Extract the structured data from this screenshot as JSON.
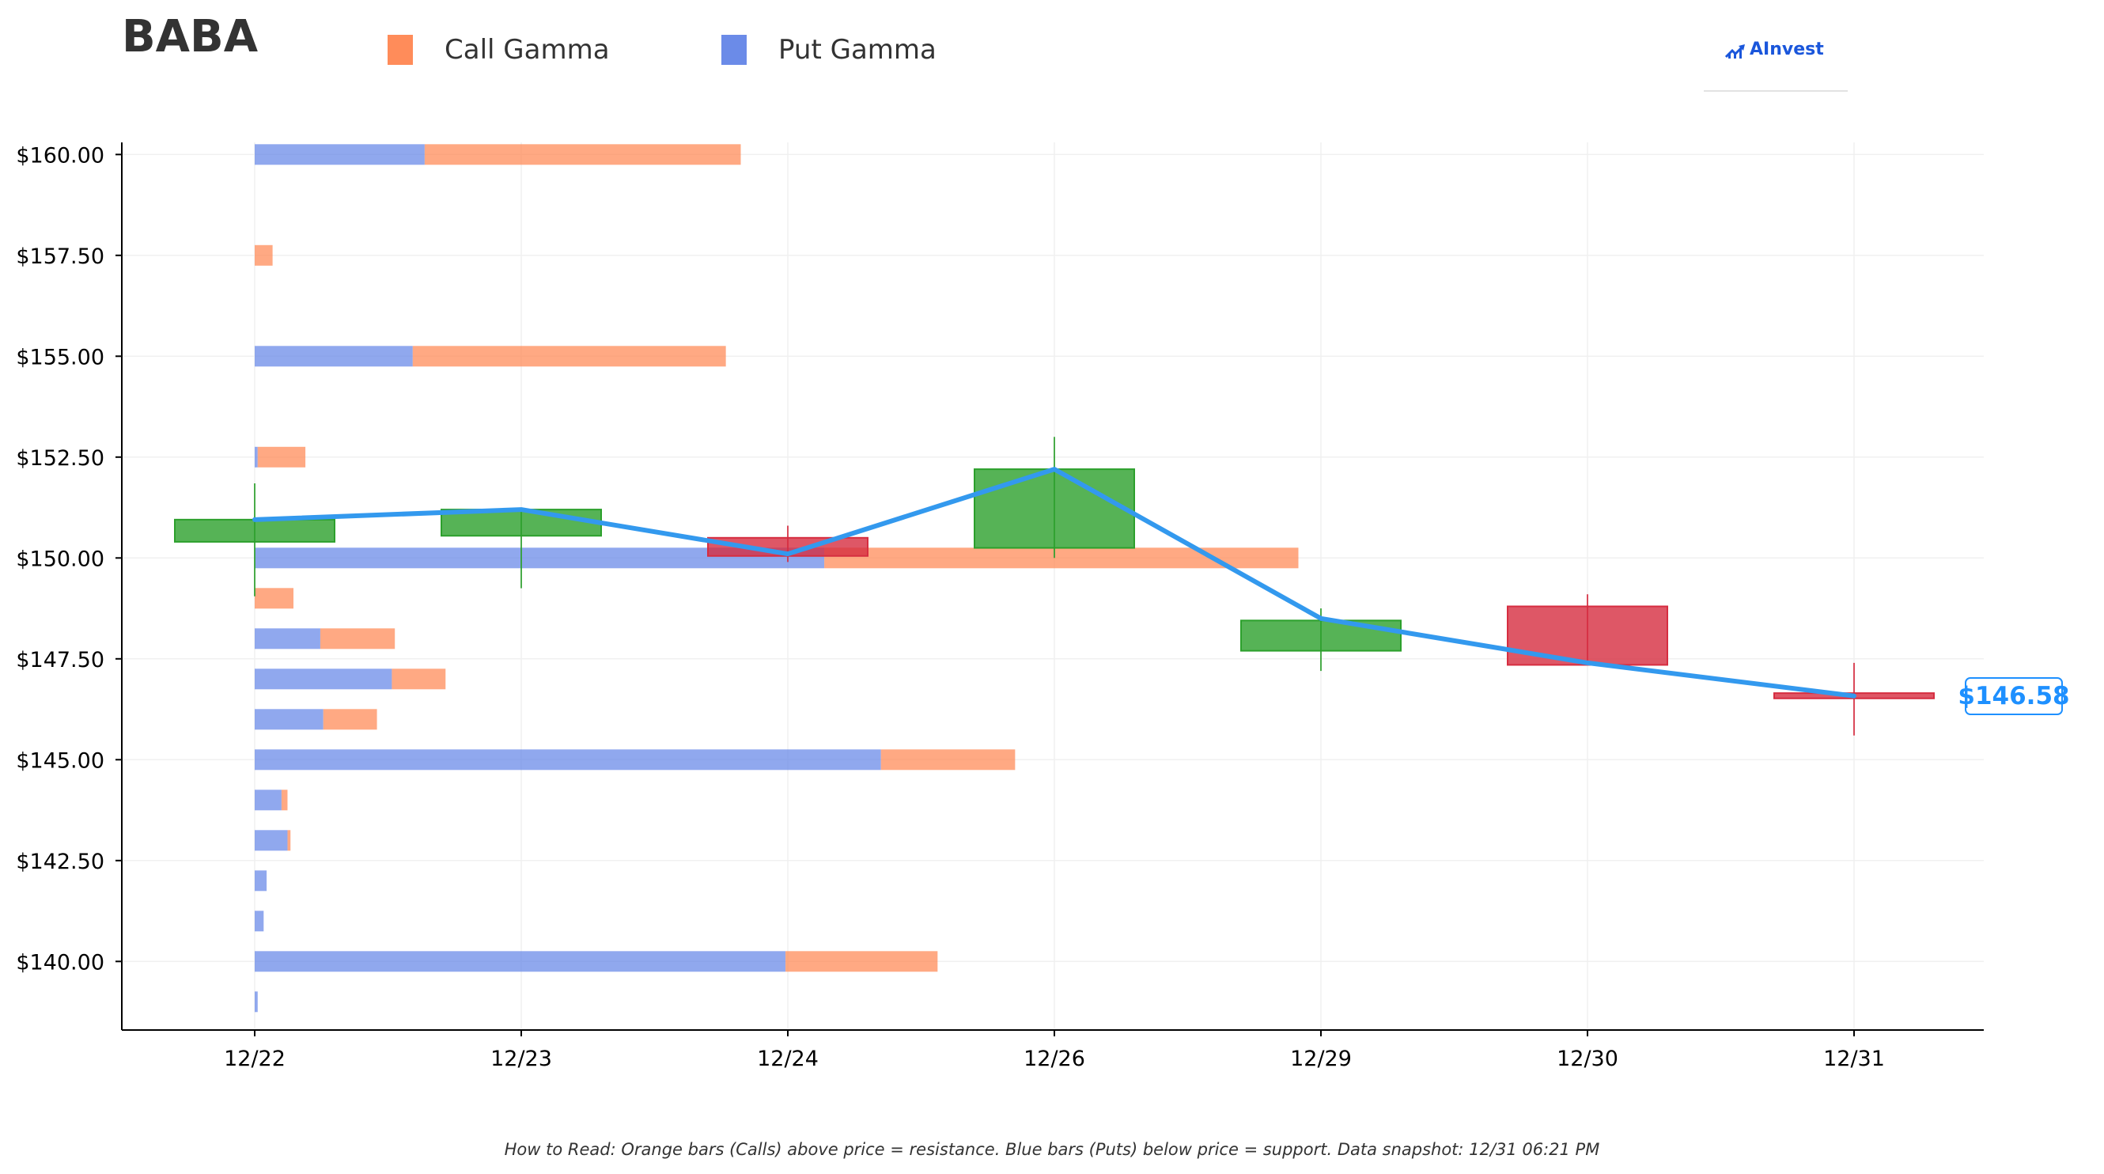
{
  "ticker": "BABA",
  "legend": [
    {
      "label": "Call Gamma",
      "color": "#ff8c5a"
    },
    {
      "label": "Put Gamma",
      "color": "#6b8be8"
    }
  ],
  "logo": {
    "text": "AInvest",
    "icon": "ainvest-chart-logo-icon"
  },
  "current_price_label": "$146.58",
  "footnote": "How to Read: Orange bars (Calls) above price = resistance. Blue bars (Puts) below price = support. Data snapshot: 12/31 06:21 PM",
  "chart_data": {
    "type": "candlestick-with-gamma-bars",
    "x_categories": [
      "12/22",
      "12/23",
      "12/24",
      "12/26",
      "12/29",
      "12/30",
      "12/31"
    ],
    "ylim": [
      138.3,
      160.3
    ],
    "y_ticks": [
      140.0,
      142.5,
      145.0,
      147.5,
      150.0,
      152.5,
      155.0,
      157.5,
      160.0
    ],
    "y_tick_labels": [
      "$140.00",
      "$142.50",
      "$145.00",
      "$147.50",
      "$150.00",
      "$152.50",
      "$155.00",
      "$157.50",
      "$160.00"
    ],
    "grid": true,
    "candles": [
      {
        "date": "12/22",
        "open": 150.4,
        "close": 150.95,
        "high": 151.85,
        "low": 149.05,
        "direction": "up"
      },
      {
        "date": "12/23",
        "open": 150.55,
        "close": 151.2,
        "high": 151.2,
        "low": 149.25,
        "direction": "up"
      },
      {
        "date": "12/24",
        "open": 150.5,
        "close": 150.05,
        "high": 150.8,
        "low": 149.9,
        "direction": "down"
      },
      {
        "date": "12/26",
        "open": 150.25,
        "close": 152.2,
        "high": 153.0,
        "low": 150.0,
        "direction": "up"
      },
      {
        "date": "12/29",
        "open": 147.7,
        "close": 148.45,
        "high": 148.75,
        "low": 147.2,
        "direction": "up"
      },
      {
        "date": "12/30",
        "open": 148.8,
        "close": 147.35,
        "high": 149.1,
        "low": 147.35,
        "direction": "down"
      },
      {
        "date": "12/31",
        "open": 146.65,
        "close": 146.52,
        "high": 147.4,
        "low": 145.6,
        "direction": "down"
      }
    ],
    "price_line": {
      "color": "#3399ee",
      "values": [
        150.95,
        151.2,
        150.1,
        152.2,
        148.5,
        147.4,
        146.58
      ]
    },
    "gamma_bars": [
      {
        "strike": 160.0,
        "put": 0.57,
        "call": 1.06
      },
      {
        "strike": 157.5,
        "put": 0.0,
        "call": 0.06
      },
      {
        "strike": 155.0,
        "put": 0.53,
        "call": 1.05
      },
      {
        "strike": 152.5,
        "put": 0.01,
        "call": 0.16
      },
      {
        "strike": 150.0,
        "put": 1.91,
        "call": 1.59
      },
      {
        "strike": 149.0,
        "put": 0.0,
        "call": 0.13
      },
      {
        "strike": 148.0,
        "put": 0.22,
        "call": 0.25
      },
      {
        "strike": 147.0,
        "put": 0.46,
        "call": 0.18
      },
      {
        "strike": 146.0,
        "put": 0.23,
        "call": 0.18
      },
      {
        "strike": 145.0,
        "put": 2.1,
        "call": 0.45
      },
      {
        "strike": 144.0,
        "put": 0.09,
        "call": 0.02
      },
      {
        "strike": 143.0,
        "put": 0.11,
        "call": 0.01
      },
      {
        "strike": 142.0,
        "put": 0.04,
        "call": 0.0
      },
      {
        "strike": 141.0,
        "put": 0.03,
        "call": 0.0
      },
      {
        "strike": 140.0,
        "put": 1.78,
        "call": 0.51
      },
      {
        "strike": 139.0,
        "put": 0.01,
        "call": 0.0
      }
    ],
    "colors": {
      "up": "#2ca02c",
      "down": "#d62d40",
      "call": "#ff8c5a",
      "put": "#6b8be8"
    }
  }
}
